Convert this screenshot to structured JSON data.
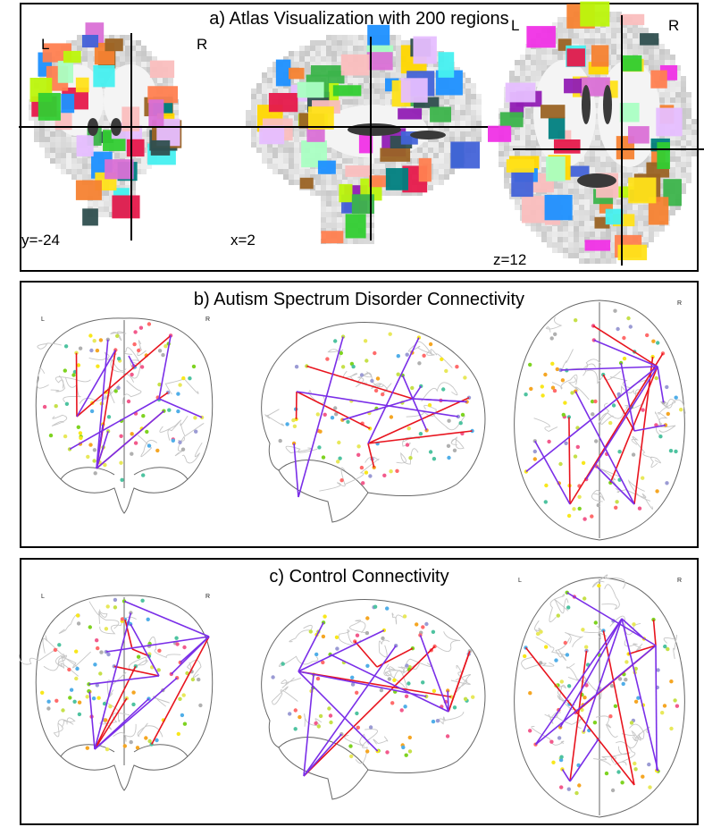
{
  "panels": {
    "a": {
      "title": "a) Atlas Visualization with 200 regions",
      "views": {
        "coronal": {
          "coord": "y=-24",
          "left": "L",
          "right": "R"
        },
        "sagittal": {
          "coord": "x=2"
        },
        "axial": {
          "coord": "z=12",
          "left": "L",
          "right": "R"
        }
      }
    },
    "b": {
      "title": "b) Autism Spectrum Disorder Connectivity",
      "left": "L",
      "right": "R",
      "axial_left": "L",
      "axial_right": "R"
    },
    "c": {
      "title": "c) Control Connectivity",
      "left": "L",
      "right": "R",
      "axial_left": "L",
      "axial_right": "R"
    }
  },
  "colors": {
    "edge_positive": "#e8141e",
    "edge_negative": "#7a2ee8",
    "atlas_palette": [
      "#e6194b",
      "#3cb44b",
      "#ffe119",
      "#4363d8",
      "#f58231",
      "#911eb4",
      "#46f0f0",
      "#f032e6",
      "#bcf60c",
      "#fabebe",
      "#008080",
      "#e6beff",
      "#9a6324",
      "#2f4f4f",
      "#aaffc3",
      "#1e90ff",
      "#ff7f50",
      "#32cd32",
      "#ffd700",
      "#da70d6"
    ],
    "node_palette": [
      "#f25a8c",
      "#f5a623",
      "#f8e71c",
      "#7ed321",
      "#4ec3a0",
      "#50aee8",
      "#9b9bd4",
      "#ff6b6b",
      "#c6e04a",
      "#e8e85a",
      "#b0b0b0"
    ]
  }
}
